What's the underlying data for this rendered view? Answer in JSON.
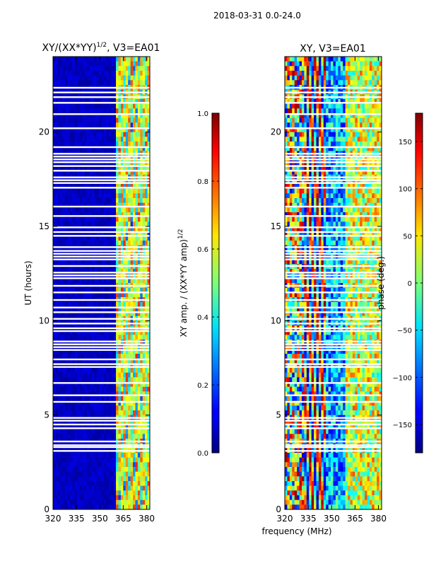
{
  "suptitle": "2018-03-31 0.0-24.0",
  "shared_xlabel": "frequency (MHz)",
  "chart_data": [
    {
      "type": "heatmap",
      "title_main": "XY/(XX*YY)",
      "title_exp": "1/2",
      "title_tail": ", V3=EA01",
      "xlabel": "",
      "ylabel": "UT (hours)",
      "xlim": [
        320,
        382
      ],
      "ylim": [
        0,
        24
      ],
      "xticks": [
        320,
        335,
        350,
        365,
        380
      ],
      "yticks": [
        0,
        5,
        10,
        15,
        20
      ],
      "colormap": "jet",
      "colorbar": {
        "label_main": "XY amp. / (XX*YY amp)",
        "label_exp": "1/2",
        "min": 0.0,
        "max": 1.0,
        "ticks": [
          "0.0",
          "0.2",
          "0.4",
          "0.6",
          "0.8",
          "1.0"
        ],
        "tick_values": [
          0.0,
          0.2,
          0.4,
          0.6,
          0.8,
          1.0
        ]
      },
      "description_of_content": "low amplitude below 360 MHz; elevated amplitude in channels 360-380 MHz",
      "flagged_ut_hours": [
        22.35,
        22.1,
        21.85,
        21.55,
        20.95,
        20.2,
        19.2,
        18.85,
        18.7,
        18.55,
        18.4,
        18.2,
        17.95,
        17.6,
        17.45,
        17.3,
        17.05,
        16.05,
        15.55,
        14.95,
        14.7,
        14.5,
        13.9,
        13.7,
        13.55,
        13.4,
        13.25,
        12.9,
        12.55,
        12.4,
        12.25,
        11.85,
        11.5,
        11.1,
        10.7,
        10.45,
        10.1,
        9.85,
        9.6,
        9.45,
        8.9,
        8.75,
        8.6,
        8.45,
        7.95,
        7.7,
        7.55,
        6.7,
        6.05,
        5.7,
        4.85,
        4.7,
        4.5,
        4.3,
        3.6,
        3.4,
        3.3,
        3.1
      ]
    },
    {
      "type": "heatmap",
      "title": "XY, V3=EA01",
      "xlabel": "",
      "ylabel": "",
      "xlim": [
        320,
        382
      ],
      "ylim": [
        0,
        24
      ],
      "xticks": [
        320,
        335,
        350,
        365,
        380
      ],
      "yticks": [
        0,
        5,
        10,
        15,
        20
      ],
      "colormap": "jet",
      "colorbar": {
        "label": "phase (deg.)",
        "min": -180,
        "max": 180,
        "ticks": [
          "150",
          "100",
          "50",
          "0",
          "−50",
          "−100",
          "−150"
        ],
        "tick_values": [
          150,
          100,
          50,
          0,
          -50,
          -100,
          -150
        ]
      },
      "description_of_content": "phase wraps across -180..180 with vertical banding near 335-345 MHz",
      "flagged_ut_hours": [
        22.35,
        22.1,
        21.85,
        21.55,
        20.95,
        20.2,
        19.2,
        18.85,
        18.7,
        18.55,
        18.4,
        18.2,
        17.95,
        17.6,
        17.45,
        17.3,
        17.05,
        16.05,
        15.55,
        14.95,
        14.7,
        14.5,
        13.9,
        13.7,
        13.55,
        13.4,
        13.25,
        12.9,
        12.55,
        12.4,
        12.25,
        11.85,
        11.5,
        11.1,
        10.7,
        10.45,
        10.1,
        9.85,
        9.6,
        9.45,
        8.9,
        8.75,
        8.6,
        8.45,
        7.95,
        7.7,
        7.55,
        6.7,
        6.05,
        5.7,
        4.85,
        4.7,
        4.5,
        4.3,
        3.6,
        3.4,
        3.3,
        3.1
      ]
    }
  ]
}
